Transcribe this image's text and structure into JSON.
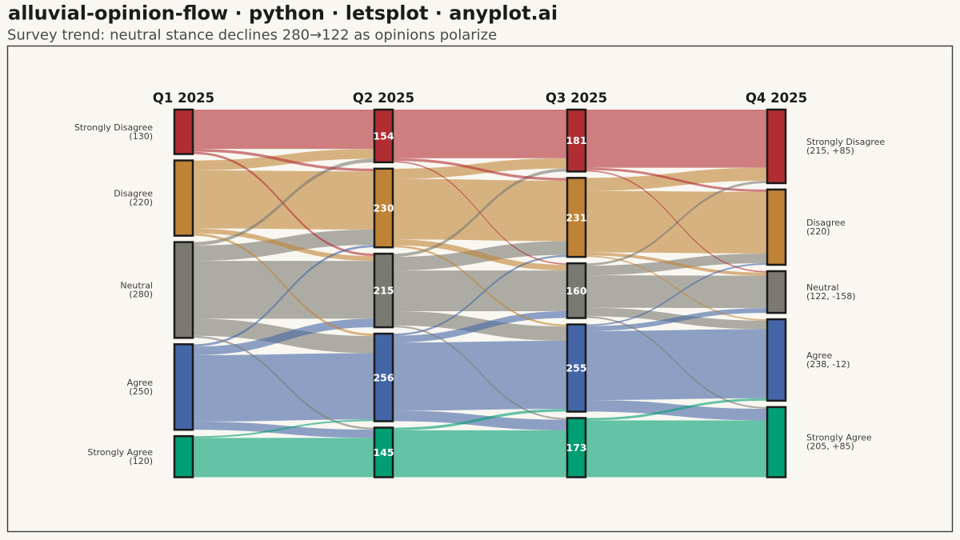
{
  "chart_data": {
    "type": "alluvial",
    "title": "alluvial-opinion-flow · python · letsplot · anyplot.ai",
    "subtitle": "Survey trend: neutral stance declines 280→122 as opinions polarize",
    "stages": [
      "Q1 2025",
      "Q2 2025",
      "Q3 2025",
      "Q4 2025"
    ],
    "categories": [
      "Strongly Disagree",
      "Disagree",
      "Neutral",
      "Agree",
      "Strongly Agree"
    ],
    "colors": [
      "#b02d33",
      "#bf8337",
      "#7a7972",
      "#4466a6",
      "#009e73"
    ],
    "nodes": [
      [
        130,
        220,
        280,
        250,
        120
      ],
      [
        154,
        230,
        215,
        256,
        145
      ],
      [
        181,
        231,
        160,
        255,
        173
      ],
      [
        215,
        220,
        122,
        238,
        205
      ]
    ],
    "flows": [
      [
        [
          115,
          8,
          7,
          0,
          0
        ],
        [
          29,
          170,
          14,
          7,
          0
        ],
        [
          10,
          45,
          169,
          50,
          6
        ],
        [
          0,
          7,
          25,
          194,
          24
        ],
        [
          0,
          0,
          0,
          5,
          115
        ]
      ],
      [
        [
          142,
          8,
          4,
          0,
          0
        ],
        [
          30,
          177,
          17,
          6,
          0
        ],
        [
          9,
          40,
          119,
          42,
          5
        ],
        [
          0,
          6,
          20,
          199,
          31
        ],
        [
          0,
          0,
          0,
          8,
          137
        ]
      ],
      [
        [
          170,
          7,
          4,
          0,
          0
        ],
        [
          38,
          180,
          9,
          4,
          0
        ],
        [
          7,
          28,
          95,
          25,
          5
        ],
        [
          0,
          5,
          14,
          202,
          34
        ],
        [
          0,
          0,
          0,
          7,
          166
        ]
      ]
    ],
    "start_labels": [
      "(130)",
      "(220)",
      "(280)",
      "(250)",
      "(120)"
    ],
    "end_labels": [
      "(215, +85)",
      "(220)",
      "(122, -158)",
      "(238, -12)",
      "(205, +85)"
    ]
  }
}
